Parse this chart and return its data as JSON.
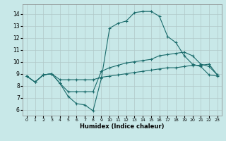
{
  "xlabel": "Humidex (Indice chaleur)",
  "background_color": "#c8e8e8",
  "grid_color": "#b0c8c8",
  "line_color": "#1a6b6b",
  "xlim": [
    -0.5,
    23.5
  ],
  "ylim": [
    5.5,
    14.8
  ],
  "xticks": [
    0,
    1,
    2,
    3,
    4,
    5,
    6,
    7,
    8,
    9,
    10,
    11,
    12,
    13,
    14,
    15,
    16,
    17,
    18,
    19,
    20,
    21,
    22,
    23
  ],
  "yticks": [
    6,
    7,
    8,
    9,
    10,
    11,
    12,
    13,
    14
  ],
  "line1_x": [
    0,
    1,
    2,
    3,
    4,
    5,
    6,
    7,
    8,
    9,
    10,
    11,
    12,
    13,
    14,
    15,
    16,
    17,
    18,
    19,
    20,
    21,
    22,
    23
  ],
  "line1_y": [
    8.8,
    8.3,
    8.9,
    9.0,
    8.5,
    8.5,
    8.5,
    8.5,
    8.5,
    8.7,
    8.8,
    8.9,
    9.0,
    9.1,
    9.2,
    9.3,
    9.4,
    9.5,
    9.5,
    9.6,
    9.7,
    9.7,
    9.8,
    8.9
  ],
  "line2_x": [
    0,
    1,
    2,
    3,
    4,
    5,
    6,
    7,
    8,
    9,
    10,
    11,
    12,
    13,
    14,
    15,
    16,
    17,
    18,
    19,
    20,
    21,
    22,
    23
  ],
  "line2_y": [
    8.8,
    8.3,
    8.9,
    9.0,
    8.2,
    7.5,
    7.5,
    7.5,
    7.5,
    9.2,
    9.5,
    9.7,
    9.9,
    10.0,
    10.1,
    10.2,
    10.5,
    10.6,
    10.7,
    10.8,
    10.5,
    9.8,
    9.6,
    8.9
  ],
  "line3_x": [
    0,
    1,
    2,
    3,
    4,
    5,
    6,
    7,
    8,
    9,
    10,
    11,
    12,
    13,
    14,
    15,
    16,
    17,
    18,
    19,
    20,
    21,
    22,
    23
  ],
  "line3_y": [
    8.8,
    8.3,
    8.9,
    9.0,
    8.2,
    7.1,
    6.5,
    6.4,
    5.9,
    8.6,
    12.8,
    13.2,
    13.4,
    14.1,
    14.2,
    14.2,
    13.8,
    12.1,
    11.6,
    10.5,
    9.8,
    9.6,
    8.9,
    8.8
  ]
}
